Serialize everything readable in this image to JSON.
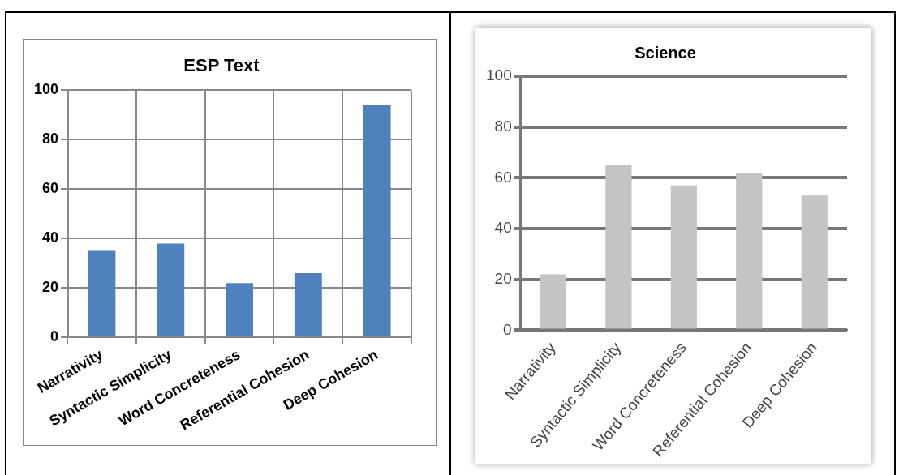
{
  "chart_data": [
    {
      "type": "bar",
      "title": "ESP Text",
      "categories": [
        "Narrativity",
        "Syntactic Simplicity",
        "Word Concreteness",
        "Referential Cohesion",
        "Deep Cohesion"
      ],
      "values": [
        35,
        38,
        22,
        26,
        94
      ],
      "color": "#4f81bd",
      "ylim": [
        0,
        100
      ],
      "yticks": [
        0,
        20,
        40,
        60,
        80,
        100
      ],
      "grid": true
    },
    {
      "type": "bar",
      "title": "Science",
      "categories": [
        "Narrativity",
        "Syntactic Simplicity",
        "Word Concreteness",
        "Referential Cohesion",
        "Deep Cohesion"
      ],
      "values": [
        22,
        65,
        57,
        62,
        53
      ],
      "color": "#c4c4c6",
      "ylim": [
        0,
        100
      ],
      "yticks": [
        0,
        20,
        40,
        60,
        80,
        100
      ],
      "grid": "y"
    }
  ]
}
